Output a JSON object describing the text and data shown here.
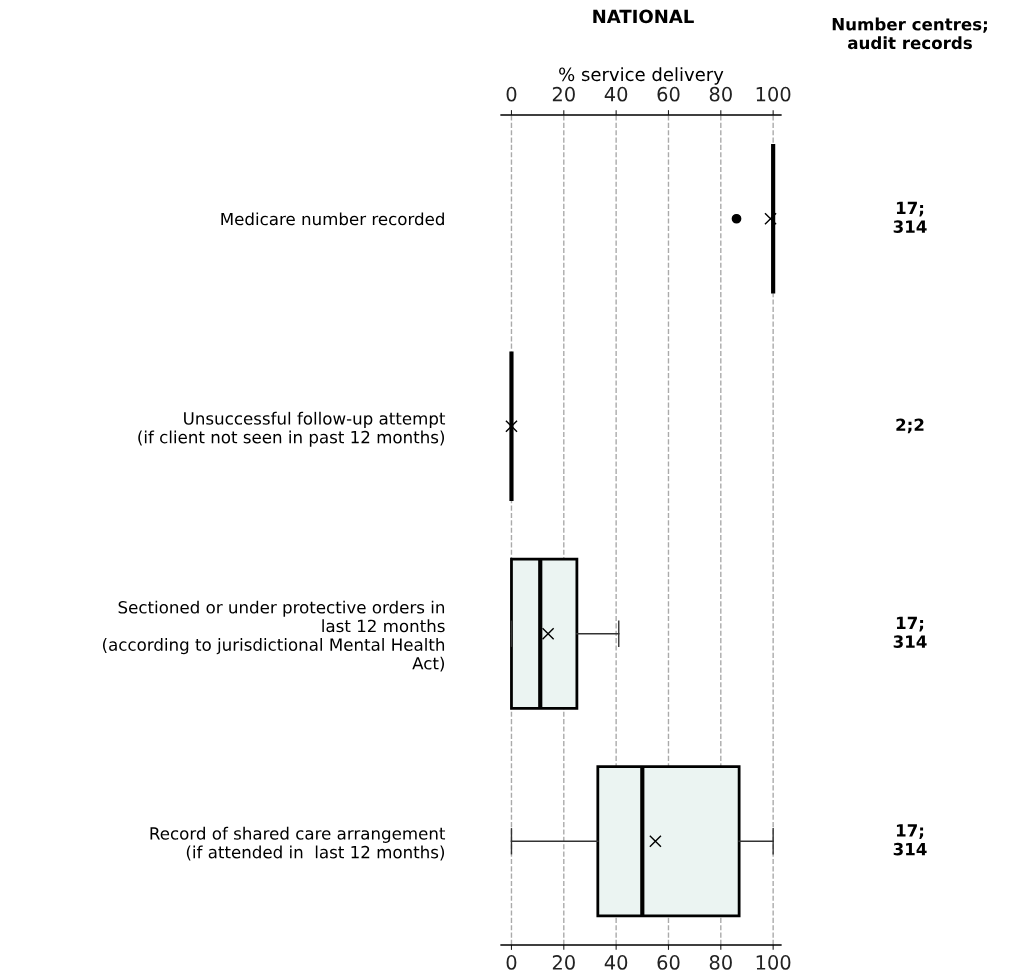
{
  "chart_data": {
    "type": "box",
    "orientation": "horizontal",
    "title": "NATIONAL",
    "x2label": "% service delivery",
    "categories": [
      "Medicare number recorded",
      "Unsuccessful follow-up attempt\n(if client not seen in past 12 months)",
      "Sectioned or under protective orders in\nlast 12 months\n(according to jurisdictional Mental Health\nAct)",
      "Record of shared care arrangement\n(if attended in  last 12 months)"
    ],
    "series": [
      {
        "color": "#ebf4f2",
        "boxes": [
          {
            "low": 100,
            "q1": 100,
            "median": 100,
            "q3": 100,
            "high": 100,
            "mean": 99,
            "outliers": [
              86
            ]
          },
          {
            "low": 0,
            "q1": 0,
            "median": 0,
            "q3": 0,
            "high": 0,
            "mean": 0
          },
          {
            "low": 0,
            "q1": 0,
            "median": 11,
            "q3": 25,
            "high": 41,
            "mean": 14
          },
          {
            "low": 0,
            "q1": 33,
            "median": 50,
            "q3": 87,
            "high": 100,
            "mean": 55
          }
        ]
      }
    ],
    "xlim": [
      -4,
      103
    ],
    "xticks": [
      0,
      20,
      40,
      60,
      80,
      100
    ],
    "x2lim": [
      -4,
      103
    ],
    "x2ticks": [
      0,
      20,
      40,
      60,
      80,
      100
    ],
    "grid": "x",
    "marker": "cross",
    "annotations": [
      "Number centres;\naudit records",
      "17;\n314",
      "2;2",
      "17;\n314",
      "17;\n314"
    ]
  }
}
